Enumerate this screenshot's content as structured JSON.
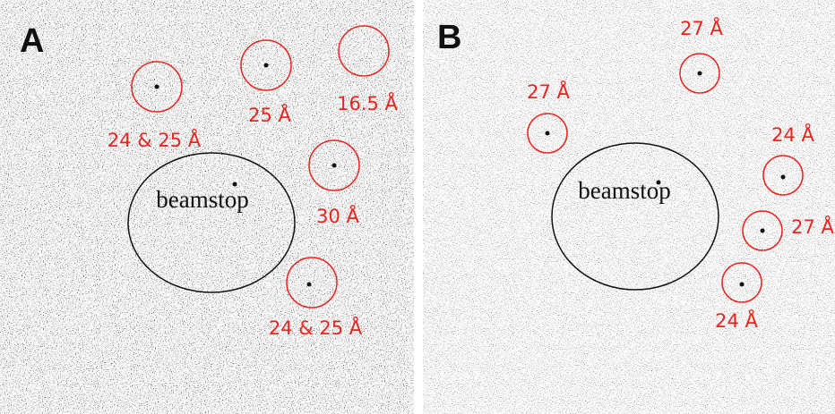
{
  "panels": [
    {
      "label": "A",
      "beamstop": "beamstop",
      "spots": [
        {
          "label": "24 & 25 Å"
        },
        {
          "label": "25 Å"
        },
        {
          "label": "16.5 Å"
        },
        {
          "label": "30 Å"
        },
        {
          "label": "24 & 25 Å"
        }
      ]
    },
    {
      "label": "B",
      "beamstop": "beamstop",
      "spots": [
        {
          "label": "27 Å"
        },
        {
          "label": "27 Å"
        },
        {
          "label": "24 Å"
        },
        {
          "label": "27 Å"
        },
        {
          "label": "24 Å"
        }
      ]
    }
  ]
}
